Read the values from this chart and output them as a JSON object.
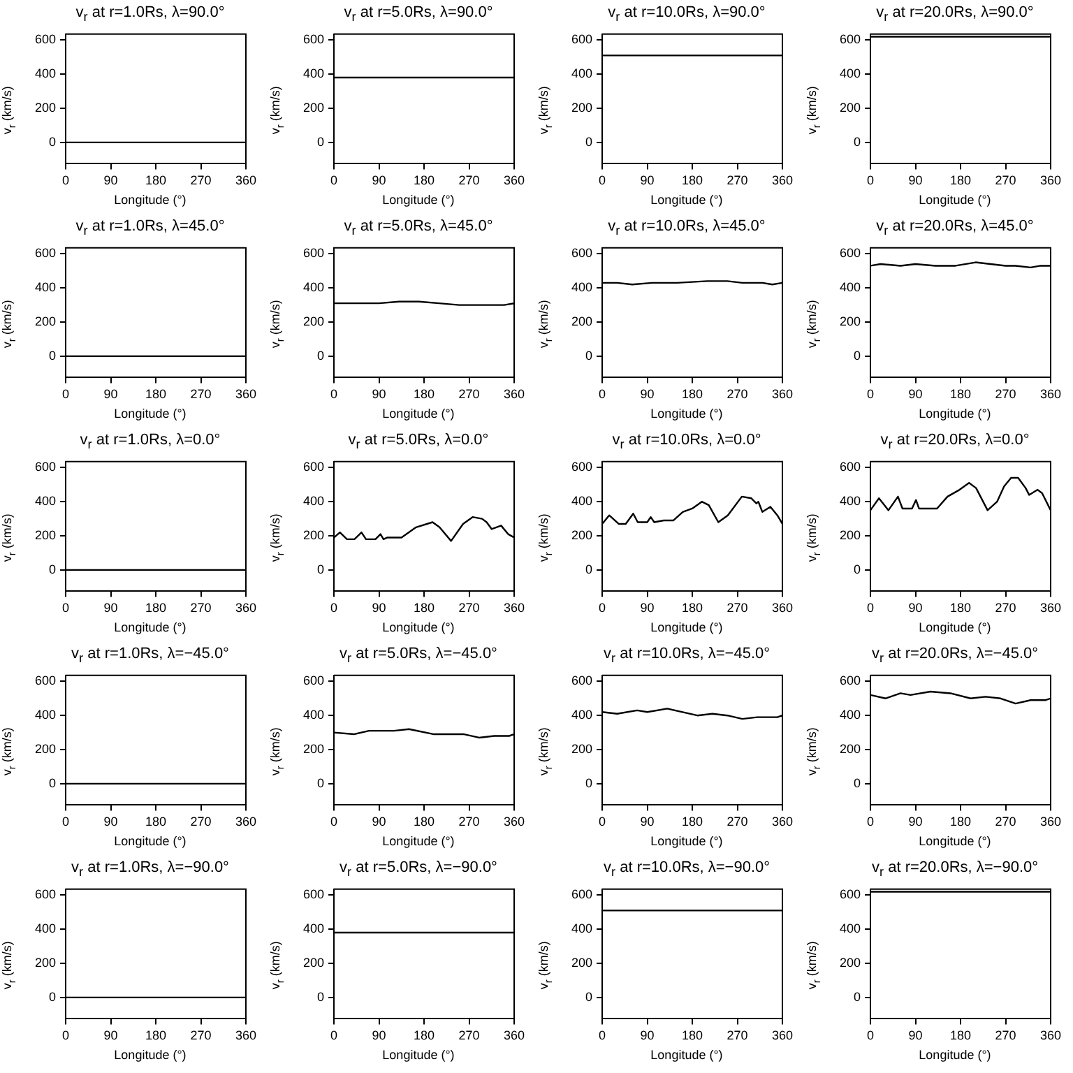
{
  "chart_data": [
    {
      "type": "line",
      "title": "v$_{r}$ at r=1.0Rs, λ=90.0°",
      "xlabel": "Longitude (°)",
      "ylabel": "v$_{r}$ (km/s)",
      "x": [
        0,
        360
      ],
      "series": [
        {
          "color": "#000000",
          "values": [
            0,
            0
          ]
        }
      ],
      "xlim": [
        0,
        360
      ],
      "xticks": [
        0,
        90,
        180,
        270,
        360
      ],
      "ylim": [
        -125,
        635
      ],
      "yticks": [
        0,
        200,
        400,
        600
      ]
    },
    {
      "type": "line",
      "title": "v$_{r}$ at r=5.0Rs, λ=90.0°",
      "xlabel": "Longitude (°)",
      "ylabel": "v$_{r}$ (km/s)",
      "x": [
        0,
        360
      ],
      "series": [
        {
          "color": "#000000",
          "values": [
            380,
            380
          ]
        }
      ],
      "xlim": [
        0,
        360
      ],
      "xticks": [
        0,
        90,
        180,
        270,
        360
      ],
      "ylim": [
        -125,
        635
      ],
      "yticks": [
        0,
        200,
        400,
        600
      ]
    },
    {
      "type": "line",
      "title": "v$_{r}$ at r=10.0Rs, λ=90.0°",
      "xlabel": "Longitude (°)",
      "ylabel": "v$_{r}$ (km/s)",
      "x": [
        0,
        360
      ],
      "series": [
        {
          "color": "#000000",
          "values": [
            510,
            510
          ]
        }
      ],
      "xlim": [
        0,
        360
      ],
      "xticks": [
        0,
        90,
        180,
        270,
        360
      ],
      "ylim": [
        -125,
        635
      ],
      "yticks": [
        0,
        200,
        400,
        600
      ]
    },
    {
      "type": "line",
      "title": "v$_{r}$ at r=20.0Rs, λ=90.0°",
      "xlabel": "Longitude (°)",
      "ylabel": "v$_{r}$ (km/s)",
      "x": [
        0,
        360
      ],
      "series": [
        {
          "color": "#000000",
          "values": [
            620,
            620
          ]
        }
      ],
      "xlim": [
        0,
        360
      ],
      "xticks": [
        0,
        90,
        180,
        270,
        360
      ],
      "ylim": [
        -125,
        635
      ],
      "yticks": [
        0,
        200,
        400,
        600
      ]
    },
    {
      "type": "line",
      "title": "v$_{r}$ at r=1.0Rs, λ=45.0°",
      "xlabel": "Longitude (°)",
      "ylabel": "v$_{r}$ (km/s)",
      "x": [
        0,
        360
      ],
      "series": [
        {
          "color": "#000000",
          "values": [
            0,
            0
          ]
        }
      ],
      "xlim": [
        0,
        360
      ],
      "xticks": [
        0,
        90,
        180,
        270,
        360
      ],
      "ylim": [
        -125,
        635
      ],
      "yticks": [
        0,
        200,
        400,
        600
      ]
    },
    {
      "type": "line",
      "title": "v$_{r}$ at r=5.0Rs, λ=45.0°",
      "xlabel": "Longitude (°)",
      "ylabel": "v$_{r}$ (km/s)",
      "x": [
        0,
        40,
        90,
        130,
        170,
        210,
        250,
        300,
        340,
        360
      ],
      "series": [
        {
          "color": "#000000",
          "values": [
            310,
            310,
            310,
            320,
            320,
            310,
            300,
            300,
            300,
            310
          ]
        }
      ],
      "xlim": [
        0,
        360
      ],
      "xticks": [
        0,
        90,
        180,
        270,
        360
      ],
      "ylim": [
        -125,
        635
      ],
      "yticks": [
        0,
        200,
        400,
        600
      ]
    },
    {
      "type": "line",
      "title": "v$_{r}$ at r=10.0Rs, λ=45.0°",
      "xlabel": "Longitude (°)",
      "ylabel": "v$_{r}$ (km/s)",
      "x": [
        0,
        30,
        60,
        100,
        150,
        210,
        250,
        280,
        320,
        340,
        360
      ],
      "series": [
        {
          "color": "#000000",
          "values": [
            430,
            430,
            420,
            430,
            430,
            440,
            440,
            430,
            430,
            420,
            430
          ]
        }
      ],
      "xlim": [
        0,
        360
      ],
      "xticks": [
        0,
        90,
        180,
        270,
        360
      ],
      "ylim": [
        -125,
        635
      ],
      "yticks": [
        0,
        200,
        400,
        600
      ]
    },
    {
      "type": "line",
      "title": "v$_{r}$ at r=20.0Rs, λ=45.0°",
      "xlabel": "Longitude (°)",
      "ylabel": "v$_{r}$ (km/s)",
      "x": [
        0,
        20,
        60,
        90,
        130,
        170,
        210,
        240,
        270,
        290,
        320,
        340,
        360
      ],
      "series": [
        {
          "color": "#000000",
          "values": [
            530,
            540,
            530,
            540,
            530,
            530,
            550,
            540,
            530,
            530,
            520,
            530,
            530
          ]
        }
      ],
      "xlim": [
        0,
        360
      ],
      "xticks": [
        0,
        90,
        180,
        270,
        360
      ],
      "ylim": [
        -125,
        635
      ],
      "yticks": [
        0,
        200,
        400,
        600
      ]
    },
    {
      "type": "line",
      "title": "v$_{r}$ at r=1.0Rs, λ=0.0°",
      "xlabel": "Longitude (°)",
      "ylabel": "v$_{r}$ (km/s)",
      "x": [
        0,
        360
      ],
      "series": [
        {
          "color": "#000000",
          "values": [
            0,
            0
          ]
        }
      ],
      "xlim": [
        0,
        360
      ],
      "xticks": [
        0,
        90,
        180,
        270,
        360
      ],
      "ylim": [
        -125,
        635
      ],
      "yticks": [
        0,
        200,
        400,
        600
      ]
    },
    {
      "type": "line",
      "title": "v$_{r}$ at r=5.0Rs, λ=0.0°",
      "xlabel": "Longitude (°)",
      "ylabel": "v$_{r}$ (km/s)",
      "x": [
        0,
        12,
        26,
        41,
        55,
        64,
        83,
        93,
        99,
        107,
        135,
        164,
        197,
        211,
        234,
        258,
        277,
        296,
        305,
        315,
        334,
        348,
        360
      ],
      "series": [
        {
          "color": "#000000",
          "values": [
            190,
            220,
            180,
            180,
            220,
            180,
            180,
            210,
            180,
            190,
            190,
            250,
            280,
            250,
            170,
            270,
            310,
            300,
            280,
            240,
            260,
            210,
            190
          ]
        }
      ],
      "xlim": [
        0,
        360
      ],
      "xticks": [
        0,
        90,
        180,
        270,
        360
      ],
      "ylim": [
        -125,
        635
      ],
      "yticks": [
        0,
        200,
        400,
        600
      ]
    },
    {
      "type": "line",
      "title": "v$_{r}$ at r=10.0Rs, λ=0.0°",
      "xlabel": "Longitude (°)",
      "ylabel": "v$_{r}$ (km/s)",
      "x": [
        0,
        14,
        33,
        47,
        62,
        71,
        90,
        97,
        104,
        123,
        142,
        161,
        180,
        199,
        213,
        232,
        251,
        279,
        298,
        308,
        312,
        320,
        336,
        350,
        360
      ],
      "series": [
        {
          "color": "#000000",
          "values": [
            270,
            320,
            270,
            270,
            330,
            280,
            280,
            310,
            280,
            290,
            290,
            340,
            360,
            400,
            380,
            280,
            320,
            430,
            420,
            390,
            400,
            340,
            370,
            320,
            270
          ]
        }
      ],
      "xlim": [
        0,
        360
      ],
      "xticks": [
        0,
        90,
        180,
        270,
        360
      ],
      "ylim": [
        -125,
        635
      ],
      "yticks": [
        0,
        200,
        400,
        600
      ]
    },
    {
      "type": "line",
      "title": "v$_{r}$ at r=20.0Rs, λ=0.0°",
      "xlabel": "Longitude (°)",
      "ylabel": "v$_{r}$ (km/s)",
      "x": [
        0,
        17,
        36,
        55,
        64,
        83,
        91,
        97,
        116,
        133,
        154,
        178,
        197,
        211,
        234,
        253,
        267,
        281,
        295,
        310,
        317,
        334,
        343,
        360
      ],
      "series": [
        {
          "color": "#000000",
          "values": [
            350,
            420,
            350,
            430,
            360,
            360,
            410,
            360,
            360,
            360,
            430,
            470,
            510,
            480,
            350,
            400,
            490,
            540,
            540,
            480,
            440,
            470,
            450,
            350
          ]
        }
      ],
      "xlim": [
        0,
        360
      ],
      "xticks": [
        0,
        90,
        180,
        270,
        360
      ],
      "ylim": [
        -125,
        635
      ],
      "yticks": [
        0,
        200,
        400,
        600
      ]
    },
    {
      "type": "line",
      "title": "v$_{r}$ at r=1.0Rs, λ=−45.0°",
      "xlabel": "Longitude (°)",
      "ylabel": "v$_{r}$ (km/s)",
      "x": [
        0,
        360
      ],
      "series": [
        {
          "color": "#000000",
          "values": [
            0,
            0
          ]
        }
      ],
      "xlim": [
        0,
        360
      ],
      "xticks": [
        0,
        90,
        180,
        270,
        360
      ],
      "ylim": [
        -125,
        635
      ],
      "yticks": [
        0,
        200,
        400,
        600
      ]
    },
    {
      "type": "line",
      "title": "v$_{r}$ at r=5.0Rs, λ=−45.0°",
      "xlabel": "Longitude (°)",
      "ylabel": "v$_{r}$ (km/s)",
      "x": [
        0,
        40,
        70,
        120,
        150,
        200,
        230,
        260,
        290,
        320,
        350,
        360
      ],
      "series": [
        {
          "color": "#000000",
          "values": [
            300,
            290,
            310,
            310,
            320,
            290,
            290,
            290,
            270,
            280,
            280,
            290
          ]
        }
      ],
      "xlim": [
        0,
        360
      ],
      "xticks": [
        0,
        90,
        180,
        270,
        360
      ],
      "ylim": [
        -125,
        635
      ],
      "yticks": [
        0,
        200,
        400,
        600
      ]
    },
    {
      "type": "line",
      "title": "v$_{r}$ at r=10.0Rs, λ=−45.0°",
      "xlabel": "Longitude (°)",
      "ylabel": "v$_{r}$ (km/s)",
      "x": [
        0,
        30,
        70,
        90,
        130,
        190,
        220,
        250,
        280,
        310,
        350,
        360
      ],
      "series": [
        {
          "color": "#000000",
          "values": [
            420,
            410,
            430,
            420,
            440,
            400,
            410,
            400,
            380,
            390,
            390,
            400
          ]
        }
      ],
      "xlim": [
        0,
        360
      ],
      "xticks": [
        0,
        90,
        180,
        270,
        360
      ],
      "ylim": [
        -125,
        635
      ],
      "yticks": [
        0,
        200,
        400,
        600
      ]
    },
    {
      "type": "line",
      "title": "v$_{r}$ at r=20.0Rs, λ=−45.0°",
      "xlabel": "Longitude (°)",
      "ylabel": "v$_{r}$ (km/s)",
      "x": [
        0,
        30,
        60,
        80,
        120,
        160,
        200,
        230,
        260,
        290,
        320,
        350,
        360
      ],
      "series": [
        {
          "color": "#000000",
          "values": [
            520,
            500,
            530,
            520,
            540,
            530,
            500,
            510,
            500,
            470,
            490,
            490,
            500
          ]
        }
      ],
      "xlim": [
        0,
        360
      ],
      "xticks": [
        0,
        90,
        180,
        270,
        360
      ],
      "ylim": [
        -125,
        635
      ],
      "yticks": [
        0,
        200,
        400,
        600
      ]
    },
    {
      "type": "line",
      "title": "v$_{r}$ at r=1.0Rs, λ=−90.0°",
      "xlabel": "Longitude (°)",
      "ylabel": "v$_{r}$ (km/s)",
      "x": [
        0,
        360
      ],
      "series": [
        {
          "color": "#000000",
          "values": [
            0,
            0
          ]
        }
      ],
      "xlim": [
        0,
        360
      ],
      "xticks": [
        0,
        90,
        180,
        270,
        360
      ],
      "ylim": [
        -125,
        635
      ],
      "yticks": [
        0,
        200,
        400,
        600
      ]
    },
    {
      "type": "line",
      "title": "v$_{r}$ at r=5.0Rs, λ=−90.0°",
      "xlabel": "Longitude (°)",
      "ylabel": "v$_{r}$ (km/s)",
      "x": [
        0,
        360
      ],
      "series": [
        {
          "color": "#000000",
          "values": [
            380,
            380
          ]
        }
      ],
      "xlim": [
        0,
        360
      ],
      "xticks": [
        0,
        90,
        180,
        270,
        360
      ],
      "ylim": [
        -125,
        635
      ],
      "yticks": [
        0,
        200,
        400,
        600
      ]
    },
    {
      "type": "line",
      "title": "v$_{r}$ at r=10.0Rs, λ=−90.0°",
      "xlabel": "Longitude (°)",
      "ylabel": "v$_{r}$ (km/s)",
      "x": [
        0,
        360
      ],
      "series": [
        {
          "color": "#000000",
          "values": [
            510,
            510
          ]
        }
      ],
      "xlim": [
        0,
        360
      ],
      "xticks": [
        0,
        90,
        180,
        270,
        360
      ],
      "ylim": [
        -125,
        635
      ],
      "yticks": [
        0,
        200,
        400,
        600
      ]
    },
    {
      "type": "line",
      "title": "v$_{r}$ at r=20.0Rs, λ=−90.0°",
      "xlabel": "Longitude (°)",
      "ylabel": "v$_{r}$ (km/s)",
      "x": [
        0,
        360
      ],
      "series": [
        {
          "color": "#000000",
          "values": [
            620,
            620
          ]
        }
      ],
      "xlim": [
        0,
        360
      ],
      "xticks": [
        0,
        90,
        180,
        270,
        360
      ],
      "ylim": [
        -125,
        635
      ],
      "yticks": [
        0,
        200,
        400,
        600
      ]
    }
  ]
}
